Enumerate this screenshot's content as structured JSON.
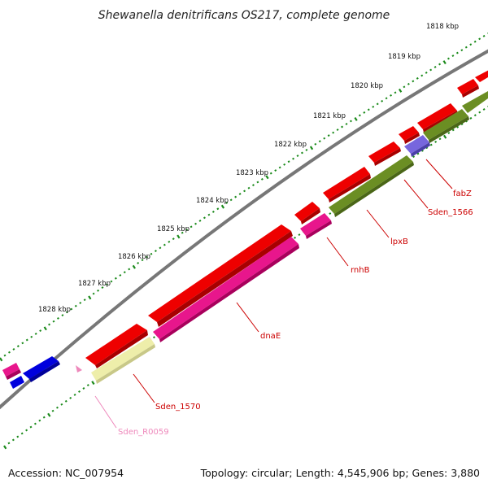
{
  "title": "Shewanella denitrificans OS217, complete genome",
  "footer": {
    "accession": "Accession: NC_007954",
    "summary": "Topology: circular; Length: 4,545,906 bp; Genes: 3,880"
  },
  "ruler": [
    "1818 kbp",
    "1819 kbp",
    "1820 kbp",
    "1821 kbp",
    "1822 kbp",
    "1823 kbp",
    "1824 kbp",
    "1825 kbp",
    "1826 kbp",
    "1827 kbp",
    "1828 kbp"
  ],
  "gene_labels": [
    {
      "name": "fabZ",
      "color": "#cc0000"
    },
    {
      "name": "Sden_1566",
      "color": "#cc0000"
    },
    {
      "name": "lpxB",
      "color": "#cc0000"
    },
    {
      "name": "rnhB",
      "color": "#cc0000"
    },
    {
      "name": "dnaE",
      "color": "#cc0000"
    },
    {
      "name": "Sden_1570",
      "color": "#cc0000"
    },
    {
      "name": "Sden_R0059",
      "color": "#ee88bb"
    }
  ],
  "colors": {
    "gene_red": "#ee0000",
    "gene_magenta": "#e8168c",
    "gene_olive": "#6b8e23",
    "gene_blue": "#0000dd",
    "gene_purple": "#7766dd",
    "gene_yellow": "#eeeeaa",
    "backbone": "#777777",
    "ticks": "#1a8a1a"
  }
}
